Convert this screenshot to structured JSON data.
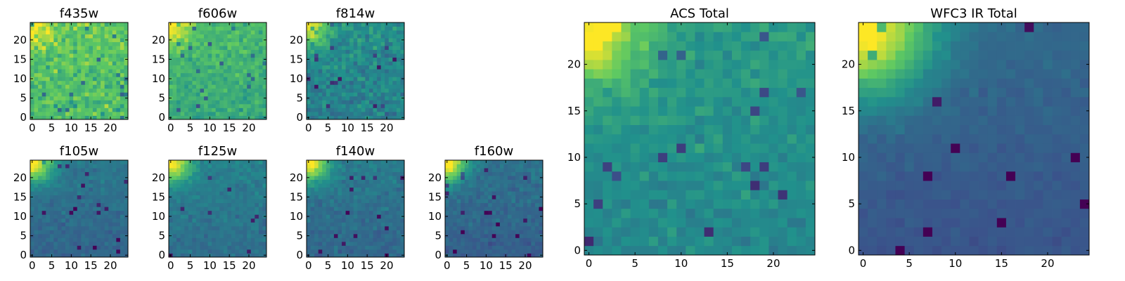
{
  "figure": {
    "colormap": [
      "#440154",
      "#3b528b",
      "#21918c",
      "#5ec962",
      "#fde725"
    ],
    "chart_data": [
      {
        "type": "heatmap",
        "title": "f435w",
        "grid": [
          25,
          25
        ],
        "xlim": [
          0,
          24
        ],
        "ylim": [
          0,
          24
        ],
        "xticks": [
          "0",
          "5",
          "10",
          "15",
          "20"
        ],
        "yticks": [
          "0",
          "5",
          "10",
          "15",
          "20"
        ],
        "hotspot": "top-left",
        "base_level": 0.72,
        "noise": 0.22,
        "corner_strength": 0.25,
        "corner_radius": 3.5
      },
      {
        "type": "heatmap",
        "title": "f606w",
        "grid": [
          25,
          25
        ],
        "xlim": [
          0,
          24
        ],
        "ylim": [
          0,
          24
        ],
        "xticks": [
          "0",
          "5",
          "10",
          "15",
          "20"
        ],
        "yticks": [
          "0",
          "5",
          "10",
          "15",
          "20"
        ],
        "hotspot": "top-left",
        "base_level": 0.64,
        "noise": 0.15,
        "corner_strength": 0.35,
        "corner_radius": 3.5
      },
      {
        "type": "heatmap",
        "title": "f814w",
        "grid": [
          25,
          25
        ],
        "xlim": [
          0,
          24
        ],
        "ylim": [
          0,
          24
        ],
        "xticks": [
          "0",
          "5",
          "10",
          "15",
          "20"
        ],
        "yticks": [
          "0",
          "5",
          "10",
          "15",
          "20"
        ],
        "hotspot": "top-left",
        "base_level": 0.46,
        "noise": 0.16,
        "corner_strength": 0.5,
        "corner_radius": 3.5
      },
      {
        "type": "heatmap",
        "title": "f105w",
        "grid": [
          25,
          25
        ],
        "xlim": [
          0,
          24
        ],
        "ylim": [
          0,
          24
        ],
        "xticks": [
          "0",
          "5",
          "10",
          "15",
          "20"
        ],
        "yticks": [
          "0",
          "5",
          "10",
          "15",
          "20"
        ],
        "hotspot": "top-left",
        "base_level": 0.36,
        "noise": 0.08,
        "corner_strength": 0.62,
        "corner_radius": 3.5
      },
      {
        "type": "heatmap",
        "title": "f125w",
        "grid": [
          25,
          25
        ],
        "xlim": [
          0,
          24
        ],
        "ylim": [
          0,
          24
        ],
        "xticks": [
          "0",
          "5",
          "10",
          "15",
          "20"
        ],
        "yticks": [
          "0",
          "5",
          "10",
          "15",
          "20"
        ],
        "hotspot": "top-left",
        "base_level": 0.4,
        "noise": 0.09,
        "corner_strength": 0.58,
        "corner_radius": 3.5
      },
      {
        "type": "heatmap",
        "title": "f140w",
        "grid": [
          25,
          25
        ],
        "xlim": [
          0,
          24
        ],
        "ylim": [
          0,
          24
        ],
        "xticks": [
          "0",
          "5",
          "10",
          "15",
          "20"
        ],
        "yticks": [
          "0",
          "5",
          "10",
          "15",
          "20"
        ],
        "hotspot": "top-left",
        "base_level": 0.37,
        "noise": 0.09,
        "corner_strength": 0.62,
        "corner_radius": 3.5
      },
      {
        "type": "heatmap",
        "title": "f160w",
        "grid": [
          25,
          25
        ],
        "xlim": [
          0,
          24
        ],
        "ylim": [
          0,
          24
        ],
        "xticks": [
          "0",
          "5",
          "10",
          "15",
          "20"
        ],
        "yticks": [
          "0",
          "5",
          "10",
          "15",
          "20"
        ],
        "hotspot": "top-left",
        "base_level": 0.34,
        "noise": 0.09,
        "corner_strength": 0.65,
        "corner_radius": 3.5
      },
      {
        "type": "heatmap",
        "title": "ACS Total",
        "grid": [
          25,
          25
        ],
        "xlim": [
          0,
          24
        ],
        "ylim": [
          0,
          24
        ],
        "xticks": [
          "0",
          "5",
          "10",
          "15",
          "20"
        ],
        "yticks": [
          "0",
          "5",
          "10",
          "15",
          "20"
        ],
        "hotspot": "top-left",
        "base_level": 0.5,
        "noise": 0.11,
        "corner_strength": 0.55,
        "corner_radius": 4
      },
      {
        "type": "heatmap",
        "title": "WFC3 IR Total",
        "grid": [
          25,
          25
        ],
        "xlim": [
          0,
          24
        ],
        "ylim": [
          0,
          24
        ],
        "xticks": [
          "0",
          "5",
          "10",
          "15",
          "20"
        ],
        "yticks": [
          "0",
          "5",
          "10",
          "15",
          "20"
        ],
        "hotspot": "top-left",
        "base_level": 0.3,
        "noise": 0.05,
        "corner_strength": 0.7,
        "corner_radius": 5
      }
    ]
  }
}
